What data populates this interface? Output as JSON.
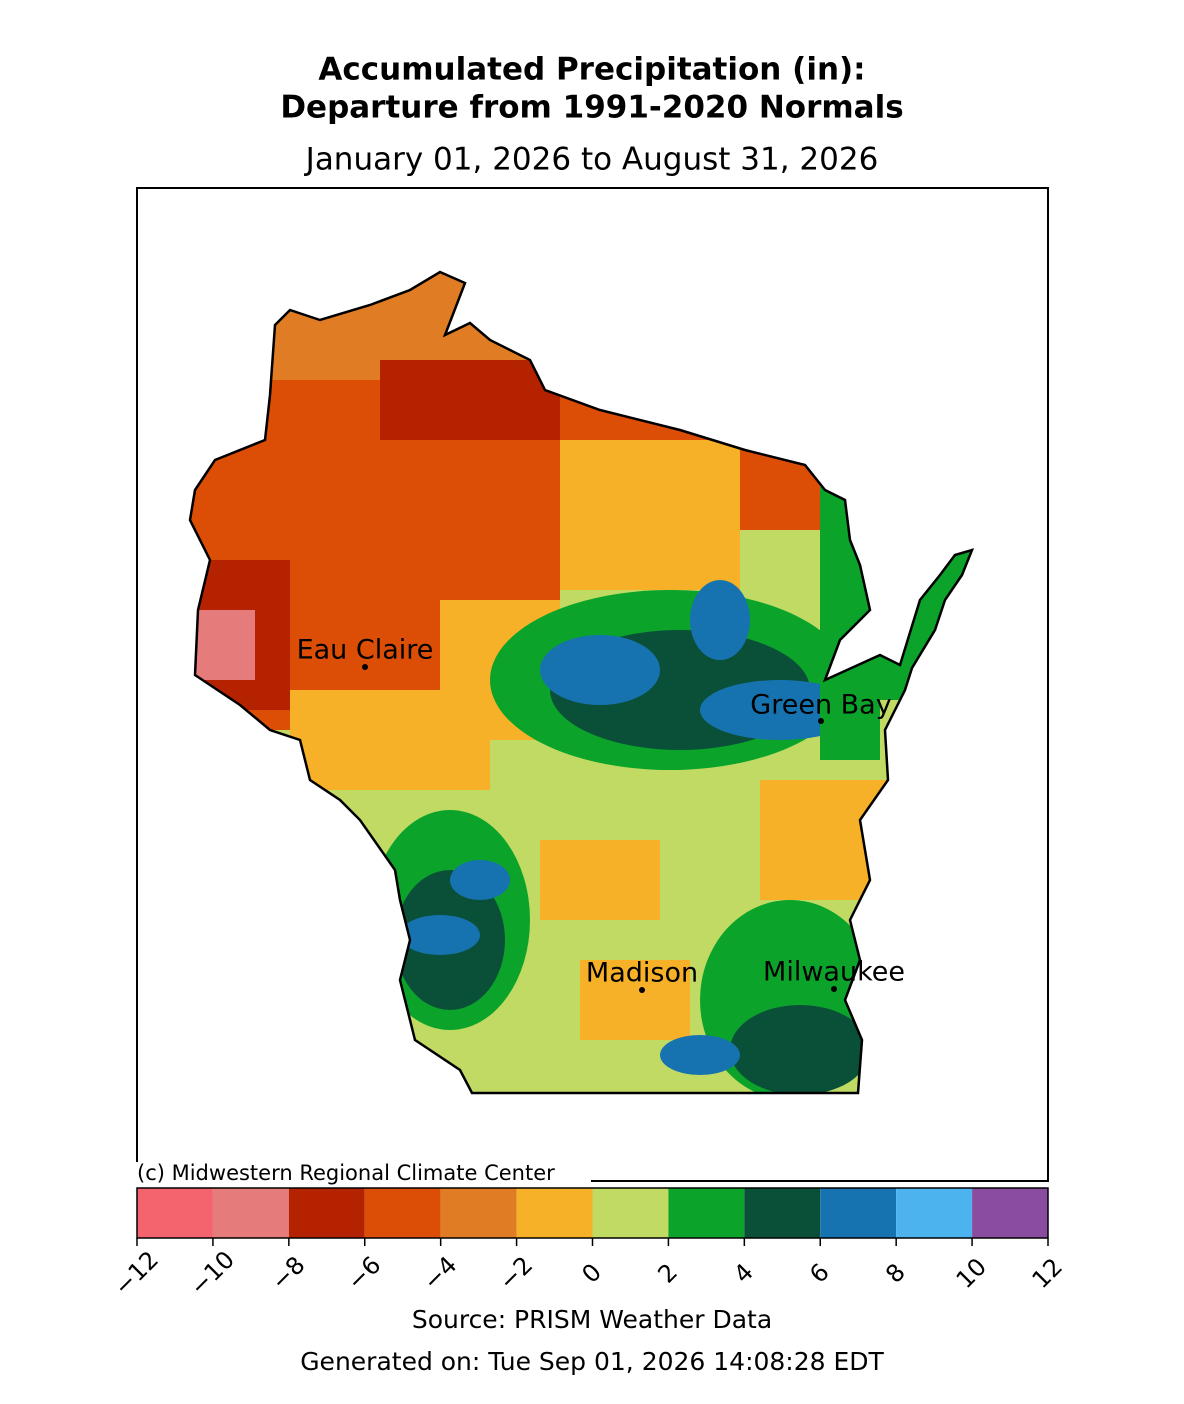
{
  "title_lines": [
    "Accumulated Precipitation (in):",
    "Departure from 1991-2020 Normals"
  ],
  "subtitle": "January 01, 2026 to August 31, 2026",
  "credit": "(c) Midwestern Regional Climate Center",
  "cities": [
    "Eau Claire",
    "Green Bay",
    "Madison",
    "Milwaukee"
  ],
  "colorbar": {
    "lim": [
      -12,
      12
    ],
    "colors": [
      "#f3646f",
      "#e57b7b",
      "#b52200",
      "#dc4d06",
      "#e07c24",
      "#f6b128",
      "#c0da64",
      "#0ba32a",
      "#0a5038",
      "#1673b0",
      "#4cb3ef",
      "#8a4c9f"
    ],
    "ticks": [
      {
        "value": -12,
        "label": "−12"
      },
      {
        "value": -10,
        "label": "−10"
      },
      {
        "value": -8,
        "label": "−8"
      },
      {
        "value": -6,
        "label": "−6"
      },
      {
        "value": -4,
        "label": "−4"
      },
      {
        "value": -2,
        "label": "−2"
      },
      0,
      2,
      4,
      6,
      8,
      10,
      12
    ]
  },
  "source": "Source: PRISM Weather Data",
  "generated": "Generated on: Tue Sep 01, 2026 14:08:28 EDT"
}
